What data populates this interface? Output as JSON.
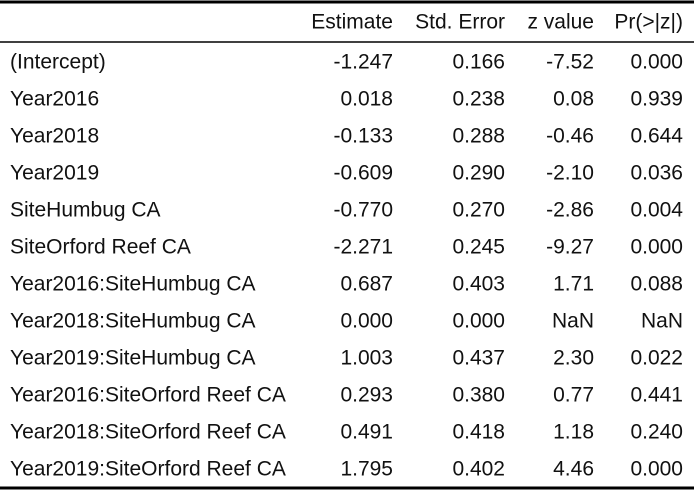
{
  "table": {
    "header": [
      "Estimate",
      "Std. Error",
      "z value",
      "Pr(>|z|)"
    ],
    "rows": [
      [
        "(Intercept)",
        "-1.247",
        "0.166",
        "-7.52",
        "0.000"
      ],
      [
        "Year2016",
        "0.018",
        "0.238",
        "0.08",
        "0.939"
      ],
      [
        "Year2018",
        "-0.133",
        "0.288",
        "-0.46",
        "0.644"
      ],
      [
        "Year2019",
        "-0.609",
        "0.290",
        "-2.10",
        "0.036"
      ],
      [
        "SiteHumbug CA",
        "-0.770",
        "0.270",
        "-2.86",
        "0.004"
      ],
      [
        "SiteOrford Reef CA",
        "-2.271",
        "0.245",
        "-9.27",
        "0.000"
      ],
      [
        "Year2016:SiteHumbug CA",
        "0.687",
        "0.403",
        "1.71",
        "0.088"
      ],
      [
        "Year2018:SiteHumbug CA",
        "0.000",
        "0.000",
        "NaN",
        "NaN"
      ],
      [
        "Year2019:SiteHumbug CA",
        "1.003",
        "0.437",
        "2.30",
        "0.022"
      ],
      [
        "Year2016:SiteOrford Reef CA",
        "0.293",
        "0.380",
        "0.77",
        "0.441"
      ],
      [
        "Year2018:SiteOrford Reef CA",
        "0.491",
        "0.418",
        "1.18",
        "0.240"
      ],
      [
        "Year2019:SiteOrford Reef CA",
        "1.795",
        "0.402",
        "4.46",
        "0.000"
      ]
    ]
  }
}
